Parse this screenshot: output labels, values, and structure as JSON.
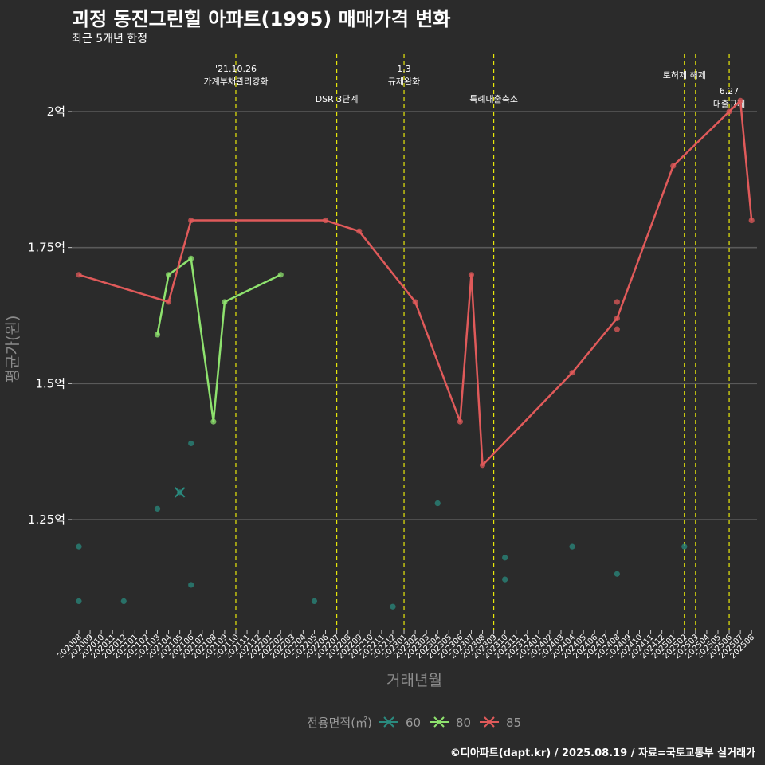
{
  "chart_data": {
    "type": "line",
    "title": "괴정 동진그린힐 아파트(1995) 매매가격 변화",
    "subtitle": "최근 5개년 한정",
    "xlabel": "거래년월",
    "ylabel": "평균가(원)",
    "caption": "©디아파트(dapt.kr) / 2025.08.19 / 자료=국토교통부 실거래가",
    "legend_title": "전용면적(㎡)",
    "y_ticks": [
      {
        "value": 1.25,
        "label": "1.25억"
      },
      {
        "value": 1.5,
        "label": "1.5억"
      },
      {
        "value": 1.75,
        "label": "1.75억"
      },
      {
        "value": 2.0,
        "label": "2억"
      }
    ],
    "ylim": [
      1.05,
      2.1
    ],
    "x_categories": [
      "202008",
      "202009",
      "202010",
      "202011",
      "202012",
      "202101",
      "202102",
      "202103",
      "202104",
      "202105",
      "202106",
      "202107",
      "202108",
      "202109",
      "202110",
      "202111",
      "202112",
      "202201",
      "202202",
      "202203",
      "202204",
      "202205",
      "202206",
      "202207",
      "202208",
      "202209",
      "202210",
      "202211",
      "202212",
      "202301",
      "202302",
      "202303",
      "202304",
      "202305",
      "202306",
      "202307",
      "202308",
      "202309",
      "202310",
      "202311",
      "202312",
      "202401",
      "202402",
      "202403",
      "202404",
      "202405",
      "202406",
      "202407",
      "202408",
      "202409",
      "202410",
      "202411",
      "202412",
      "202501",
      "202502",
      "202503",
      "202504",
      "202505",
      "202506",
      "202507",
      "202508"
    ],
    "events": [
      {
        "month": "202110",
        "lines": [
          "'21.10.26",
          "가계부채관리강화"
        ],
        "row": 0
      },
      {
        "month": "202207",
        "lines": [
          "DSR 3단계"
        ],
        "row": 2
      },
      {
        "month": "202301",
        "lines": [
          "1.3",
          "규제완화"
        ],
        "row": 0
      },
      {
        "month": "202309",
        "lines": [
          "특례대출축소"
        ],
        "row": 2
      },
      {
        "month": "202502",
        "lines": [
          "토허제 해제"
        ],
        "row": 1
      },
      {
        "month": "202503",
        "lines": [],
        "row": 1
      },
      {
        "month": "202506",
        "lines": [
          "6.27",
          "대출규제"
        ],
        "row": 3
      }
    ],
    "series": [
      {
        "name": "60",
        "color": "#2a8a7e",
        "line": false,
        "points": [
          [
            "202008",
            1.2
          ],
          [
            "202008",
            1.1
          ],
          [
            "202012",
            1.1
          ],
          [
            "202103",
            1.27
          ],
          [
            "202105",
            1.3
          ],
          [
            "202106",
            1.39
          ],
          [
            "202106",
            1.13
          ],
          [
            "202205",
            1.1
          ],
          [
            "202212",
            1.09
          ],
          [
            "202304",
            1.28
          ],
          [
            "202310",
            1.18
          ],
          [
            "202310",
            1.14
          ],
          [
            "202404",
            1.2
          ],
          [
            "202408",
            1.15
          ],
          [
            "202502",
            1.2
          ]
        ],
        "markers": [
          {
            "month": "202105",
            "value": 1.3,
            "symbol": "x"
          }
        ]
      },
      {
        "name": "80",
        "color": "#8ee26e",
        "line": true,
        "points": [
          [
            "202103",
            1.59
          ],
          [
            "202104",
            1.7
          ],
          [
            "202106",
            1.73
          ],
          [
            "202108",
            1.43
          ],
          [
            "202109",
            1.65
          ],
          [
            "202202",
            1.7
          ]
        ]
      },
      {
        "name": "85",
        "color": "#e05a5a",
        "line": true,
        "points": [
          [
            "202008",
            1.7
          ],
          [
            "202104",
            1.65
          ],
          [
            "202106",
            1.8
          ],
          [
            "202206",
            1.8
          ],
          [
            "202209",
            1.78
          ],
          [
            "202302",
            1.65
          ],
          [
            "202306",
            1.43
          ],
          [
            "202307",
            1.7
          ],
          [
            "202308",
            1.35
          ],
          [
            "202404",
            1.52
          ],
          [
            "202408",
            1.62
          ],
          [
            "202501",
            1.9
          ],
          [
            "202506",
            2.0
          ],
          [
            "202507",
            2.02
          ],
          [
            "202508",
            1.8
          ]
        ],
        "extra_points": [
          [
            "202408",
            1.65
          ],
          [
            "202408",
            1.6
          ]
        ]
      }
    ]
  }
}
